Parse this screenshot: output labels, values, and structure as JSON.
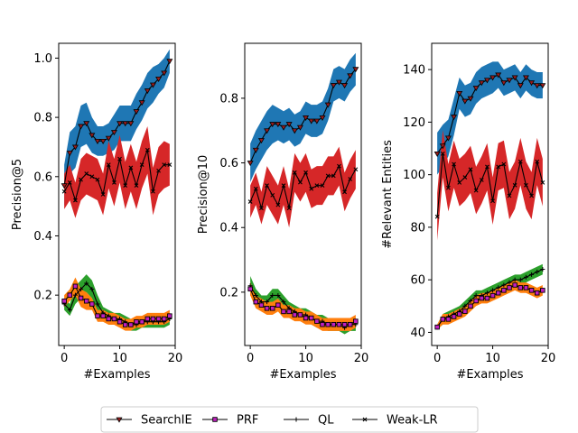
{
  "legend": {
    "items": [
      {
        "name": "SearchIE",
        "marker": "triangle-down"
      },
      {
        "name": "PRF",
        "marker": "square"
      },
      {
        "name": "QL",
        "marker": "plus"
      },
      {
        "name": "Weak-LR",
        "marker": "x"
      }
    ]
  },
  "colors": {
    "band_searchie": "#1f77b4",
    "band_prf": "#ff7f0e",
    "band_ql": "#2ca02c",
    "band_weaklr": "#d62728",
    "line": "#000000",
    "prf_marker_fill": "#c020c0"
  },
  "chart_data": [
    {
      "type": "line",
      "title": "",
      "xlabel": "#Examples",
      "ylabel": "Precision@5",
      "xlim": [
        -1,
        20
      ],
      "ylim": [
        0.03,
        1.05
      ],
      "xticks": [
        0,
        10,
        20
      ],
      "yticks": [
        0.2,
        0.4,
        0.6,
        0.8,
        1.0
      ],
      "ytick_labels": [
        "0.2",
        "0.4",
        "0.6",
        "0.8",
        "1.0"
      ],
      "x": [
        0,
        1,
        2,
        3,
        4,
        5,
        6,
        7,
        8,
        9,
        10,
        11,
        12,
        13,
        14,
        15,
        16,
        17,
        18,
        19
      ],
      "series": [
        {
          "name": "SearchIE",
          "values": [
            0.57,
            0.68,
            0.7,
            0.77,
            0.78,
            0.74,
            0.72,
            0.72,
            0.73,
            0.75,
            0.78,
            0.78,
            0.78,
            0.82,
            0.85,
            0.89,
            0.91,
            0.93,
            0.95,
            0.99
          ],
          "band": [
            0.07,
            0.07,
            0.07,
            0.07,
            0.07,
            0.06,
            0.05,
            0.05,
            0.05,
            0.06,
            0.06,
            0.06,
            0.06,
            0.06,
            0.06,
            0.06,
            0.06,
            0.05,
            0.05,
            0.04
          ]
        },
        {
          "name": "Weak-LR",
          "values": [
            0.55,
            0.58,
            0.52,
            0.59,
            0.61,
            0.6,
            0.59,
            0.54,
            0.64,
            0.58,
            0.66,
            0.57,
            0.63,
            0.57,
            0.64,
            0.69,
            0.55,
            0.62,
            0.64,
            0.64
          ],
          "band": [
            0.06,
            0.06,
            0.06,
            0.07,
            0.07,
            0.07,
            0.07,
            0.07,
            0.08,
            0.08,
            0.08,
            0.08,
            0.08,
            0.08,
            0.08,
            0.08,
            0.08,
            0.08,
            0.08,
            0.07
          ]
        },
        {
          "name": "QL",
          "values": [
            0.17,
            0.15,
            0.2,
            0.22,
            0.24,
            0.22,
            0.17,
            0.14,
            0.13,
            0.12,
            0.12,
            0.11,
            0.1,
            0.1,
            0.11,
            0.11,
            0.11,
            0.11,
            0.11,
            0.12
          ],
          "band": [
            0.02,
            0.02,
            0.03,
            0.03,
            0.03,
            0.03,
            0.03,
            0.02,
            0.02,
            0.02,
            0.02,
            0.02,
            0.02,
            0.02,
            0.02,
            0.02,
            0.02,
            0.02,
            0.02,
            0.02
          ]
        },
        {
          "name": "PRF",
          "values": [
            0.18,
            0.2,
            0.23,
            0.19,
            0.18,
            0.17,
            0.13,
            0.13,
            0.12,
            0.12,
            0.11,
            0.1,
            0.1,
            0.11,
            0.11,
            0.12,
            0.12,
            0.12,
            0.12,
            0.13
          ],
          "band": [
            0.02,
            0.02,
            0.03,
            0.03,
            0.03,
            0.02,
            0.02,
            0.02,
            0.02,
            0.02,
            0.02,
            0.02,
            0.02,
            0.02,
            0.02,
            0.02,
            0.02,
            0.02,
            0.02,
            0.02
          ]
        }
      ]
    },
    {
      "type": "line",
      "title": "",
      "xlabel": "#Examples",
      "ylabel": "Precision@10",
      "xlim": [
        -1,
        20
      ],
      "ylim": [
        0.035,
        0.97
      ],
      "xticks": [
        0,
        10,
        20
      ],
      "yticks": [
        0.2,
        0.4,
        0.6,
        0.8
      ],
      "ytick_labels": [
        "0.2",
        "0.4",
        "0.6",
        "0.8"
      ],
      "x": [
        0,
        1,
        2,
        3,
        4,
        5,
        6,
        7,
        8,
        9,
        10,
        11,
        12,
        13,
        14,
        15,
        16,
        17,
        18,
        19
      ],
      "series": [
        {
          "name": "SearchIE",
          "values": [
            0.6,
            0.64,
            0.67,
            0.7,
            0.72,
            0.72,
            0.71,
            0.72,
            0.7,
            0.71,
            0.74,
            0.73,
            0.73,
            0.74,
            0.78,
            0.84,
            0.85,
            0.84,
            0.87,
            0.89
          ],
          "band": [
            0.06,
            0.06,
            0.06,
            0.06,
            0.06,
            0.05,
            0.05,
            0.05,
            0.05,
            0.05,
            0.05,
            0.05,
            0.05,
            0.05,
            0.05,
            0.05,
            0.05,
            0.05,
            0.05,
            0.05
          ]
        },
        {
          "name": "Weak-LR",
          "values": [
            0.48,
            0.52,
            0.46,
            0.53,
            0.5,
            0.47,
            0.53,
            0.46,
            0.57,
            0.54,
            0.57,
            0.52,
            0.53,
            0.53,
            0.56,
            0.56,
            0.59,
            0.51,
            0.55,
            0.58
          ],
          "band": [
            0.05,
            0.05,
            0.05,
            0.06,
            0.06,
            0.06,
            0.06,
            0.06,
            0.06,
            0.06,
            0.06,
            0.06,
            0.06,
            0.06,
            0.06,
            0.06,
            0.06,
            0.06,
            0.06,
            0.06
          ]
        },
        {
          "name": "QL",
          "values": [
            0.22,
            0.19,
            0.17,
            0.17,
            0.19,
            0.19,
            0.17,
            0.15,
            0.14,
            0.13,
            0.13,
            0.12,
            0.11,
            0.11,
            0.1,
            0.1,
            0.1,
            0.09,
            0.1,
            0.1
          ],
          "band": [
            0.03,
            0.02,
            0.02,
            0.02,
            0.02,
            0.02,
            0.02,
            0.02,
            0.02,
            0.02,
            0.02,
            0.02,
            0.02,
            0.02,
            0.02,
            0.02,
            0.02,
            0.02,
            0.02,
            0.02
          ]
        },
        {
          "name": "PRF",
          "values": [
            0.21,
            0.17,
            0.16,
            0.15,
            0.15,
            0.16,
            0.14,
            0.14,
            0.13,
            0.13,
            0.12,
            0.12,
            0.11,
            0.1,
            0.1,
            0.1,
            0.1,
            0.1,
            0.1,
            0.11
          ],
          "band": [
            0.02,
            0.02,
            0.02,
            0.02,
            0.02,
            0.02,
            0.02,
            0.02,
            0.02,
            0.02,
            0.02,
            0.02,
            0.02,
            0.02,
            0.02,
            0.02,
            0.02,
            0.02,
            0.02,
            0.02
          ]
        }
      ]
    },
    {
      "type": "line",
      "title": "",
      "xlabel": "#Examples",
      "ylabel": "#Relevant Entities",
      "xlim": [
        -1,
        20
      ],
      "ylim": [
        35,
        150
      ],
      "xticks": [
        0,
        10,
        20
      ],
      "yticks": [
        40,
        60,
        80,
        100,
        120,
        140
      ],
      "ytick_labels": [
        "40",
        "60",
        "80",
        "100",
        "120",
        "140"
      ],
      "x": [
        0,
        1,
        2,
        3,
        4,
        5,
        6,
        7,
        8,
        9,
        10,
        11,
        12,
        13,
        14,
        15,
        16,
        17,
        18,
        19
      ],
      "series": [
        {
          "name": "SearchIE",
          "values": [
            108,
            111,
            114,
            122,
            131,
            128,
            129,
            133,
            135,
            136,
            137,
            138,
            135,
            136,
            137,
            134,
            137,
            135,
            134,
            134
          ],
          "band": [
            8,
            8,
            7,
            7,
            6,
            6,
            6,
            6,
            6,
            6,
            6,
            5,
            5,
            5,
            5,
            5,
            5,
            5,
            5,
            5
          ]
        },
        {
          "name": "Weak-LR",
          "values": [
            84,
            108,
            95,
            104,
            97,
            99,
            102,
            94,
            98,
            103,
            90,
            103,
            104,
            92,
            96,
            105,
            96,
            92,
            105,
            97
          ],
          "band": [
            9,
            9,
            9,
            9,
            9,
            9,
            9,
            9,
            9,
            9,
            9,
            9,
            9,
            9,
            9,
            9,
            9,
            9,
            9,
            9
          ]
        },
        {
          "name": "QL",
          "values": [
            42,
            45,
            46,
            47,
            48,
            50,
            52,
            54,
            54,
            55,
            56,
            57,
            58,
            59,
            60,
            60,
            61,
            62,
            63,
            64
          ],
          "band": [
            1,
            2,
            2,
            2,
            2,
            2,
            2,
            2,
            2,
            2,
            2,
            2,
            2,
            2,
            2,
            2,
            2,
            2,
            2,
            2
          ]
        },
        {
          "name": "PRF",
          "values": [
            42,
            45,
            45,
            46,
            47,
            48,
            50,
            52,
            53,
            53,
            54,
            55,
            56,
            57,
            58,
            57,
            57,
            56,
            55,
            56
          ],
          "band": [
            1,
            2,
            2,
            2,
            2,
            2,
            2,
            2,
            2,
            2,
            2,
            2,
            2,
            2,
            2,
            2,
            2,
            2,
            2,
            2
          ]
        }
      ]
    }
  ]
}
